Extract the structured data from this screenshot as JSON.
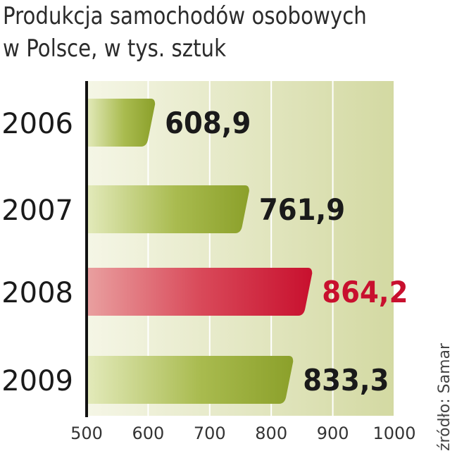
{
  "title_line1": "Produkcja samochodów osobowych",
  "title_line2": "w Polsce, w tys. sztuk",
  "source": "źródło: Samar",
  "colors": {
    "bar_green_dark": "#8aa12c",
    "bar_green_light": "#dfe7b3",
    "bar_red_dark": "#c8102e",
    "bar_red_light": "#e48a8a",
    "label_black": "#1a1a1a",
    "label_red": "#c8102e",
    "bg_left": "#f2f4df",
    "bg_right": "#d6dca8"
  },
  "chart_data": {
    "type": "bar",
    "orientation": "horizontal",
    "title": "Produkcja samochodów osobowych w Polsce, w tys. sztuk",
    "categories": [
      "2006",
      "2007",
      "2008",
      "2009"
    ],
    "values": [
      608.9,
      761.9,
      864.2,
      833.3
    ],
    "value_labels": [
      "608,9",
      "761,9",
      "864,2",
      "833,3"
    ],
    "highlight_index": 2,
    "xlim": [
      500,
      1000
    ],
    "xticks": [
      "500",
      "600",
      "700",
      "800",
      "900",
      "1000"
    ],
    "grid": true
  }
}
